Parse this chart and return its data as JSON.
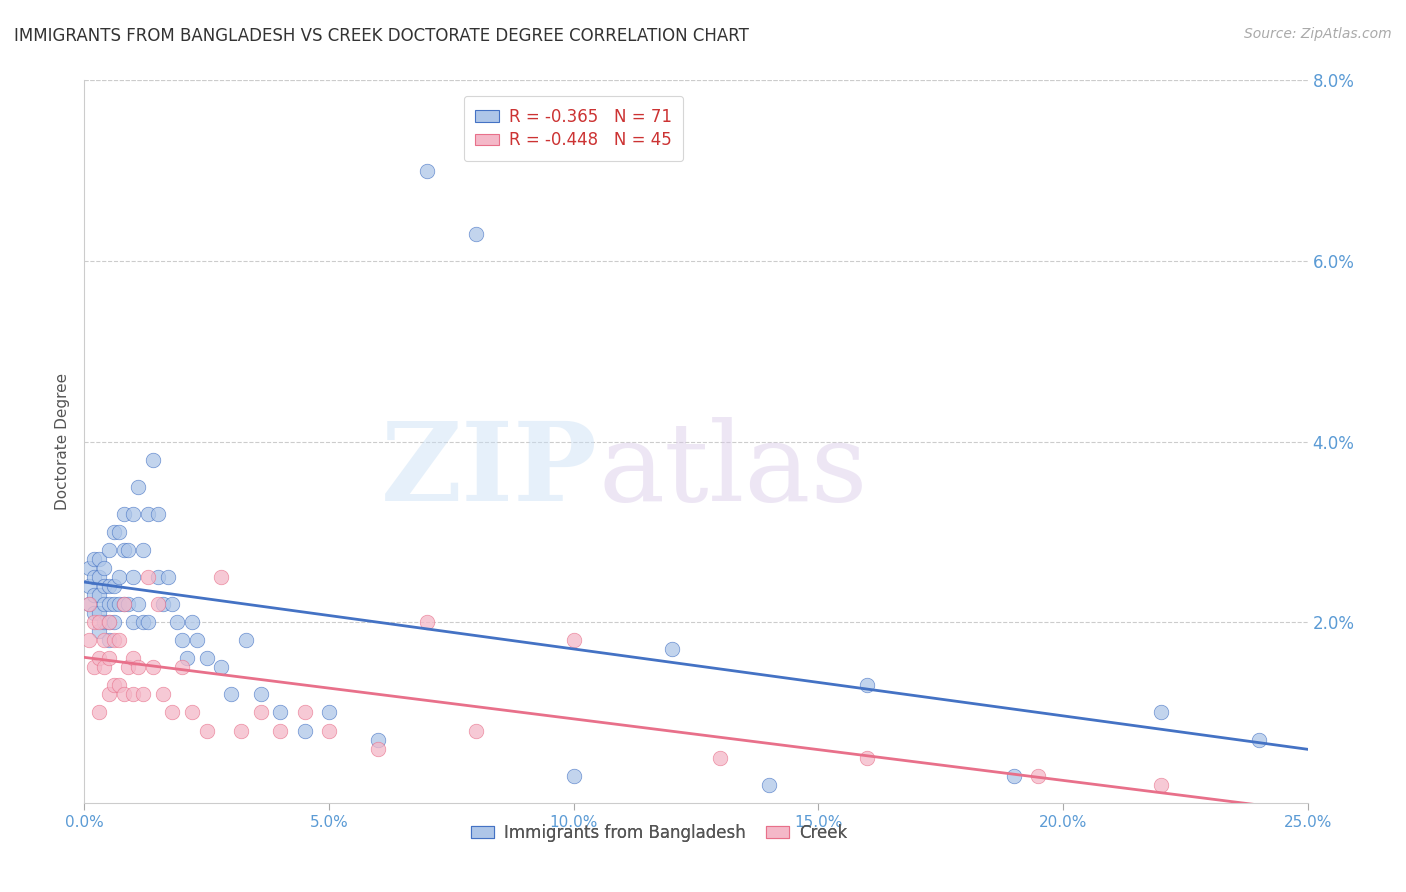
{
  "title": "IMMIGRANTS FROM BANGLADESH VS CREEK DOCTORATE DEGREE CORRELATION CHART",
  "source_text": "Source: ZipAtlas.com",
  "ylabel": "Doctorate Degree",
  "xlim": [
    0.0,
    0.25
  ],
  "ylim": [
    0.0,
    0.08
  ],
  "xticks": [
    0.0,
    0.05,
    0.1,
    0.15,
    0.2,
    0.25
  ],
  "xticklabels": [
    "0.0%",
    "5.0%",
    "10.0%",
    "15.0%",
    "20.0%",
    "25.0%"
  ],
  "yticks_right": [
    0.0,
    0.02,
    0.04,
    0.06,
    0.08
  ],
  "yticklabels_right": [
    "",
    "2.0%",
    "4.0%",
    "6.0%",
    "8.0%"
  ],
  "blue_color": "#aec6e8",
  "pink_color": "#f4b8c8",
  "blue_line_color": "#4472c4",
  "pink_line_color": "#e8708a",
  "legend_blue_label": "R = -0.365   N = 71",
  "legend_pink_label": "R = -0.448   N = 45",
  "legend_blue_series": "Immigrants from Bangladesh",
  "legend_pink_series": "Creek",
  "watermark_zip": "ZIP",
  "watermark_atlas": "atlas",
  "title_color": "#333333",
  "axis_label_color": "#5b9bd5",
  "blue_scatter_x": [
    0.001,
    0.001,
    0.001,
    0.002,
    0.002,
    0.002,
    0.002,
    0.003,
    0.003,
    0.003,
    0.003,
    0.003,
    0.004,
    0.004,
    0.004,
    0.004,
    0.005,
    0.005,
    0.005,
    0.005,
    0.005,
    0.006,
    0.006,
    0.006,
    0.006,
    0.007,
    0.007,
    0.007,
    0.008,
    0.008,
    0.008,
    0.009,
    0.009,
    0.01,
    0.01,
    0.01,
    0.011,
    0.011,
    0.012,
    0.012,
    0.013,
    0.013,
    0.014,
    0.015,
    0.015,
    0.016,
    0.017,
    0.018,
    0.019,
    0.02,
    0.021,
    0.022,
    0.023,
    0.025,
    0.028,
    0.03,
    0.033,
    0.036,
    0.04,
    0.045,
    0.05,
    0.06,
    0.07,
    0.08,
    0.1,
    0.12,
    0.14,
    0.16,
    0.19,
    0.22,
    0.24
  ],
  "blue_scatter_y": [
    0.022,
    0.024,
    0.026,
    0.021,
    0.023,
    0.025,
    0.027,
    0.019,
    0.021,
    0.023,
    0.025,
    0.027,
    0.02,
    0.022,
    0.024,
    0.026,
    0.018,
    0.02,
    0.022,
    0.024,
    0.028,
    0.02,
    0.022,
    0.024,
    0.03,
    0.022,
    0.025,
    0.03,
    0.022,
    0.028,
    0.032,
    0.022,
    0.028,
    0.02,
    0.025,
    0.032,
    0.022,
    0.035,
    0.02,
    0.028,
    0.02,
    0.032,
    0.038,
    0.025,
    0.032,
    0.022,
    0.025,
    0.022,
    0.02,
    0.018,
    0.016,
    0.02,
    0.018,
    0.016,
    0.015,
    0.012,
    0.018,
    0.012,
    0.01,
    0.008,
    0.01,
    0.007,
    0.07,
    0.063,
    0.003,
    0.017,
    0.002,
    0.013,
    0.003,
    0.01,
    0.007
  ],
  "pink_scatter_x": [
    0.001,
    0.001,
    0.002,
    0.002,
    0.003,
    0.003,
    0.003,
    0.004,
    0.004,
    0.005,
    0.005,
    0.005,
    0.006,
    0.006,
    0.007,
    0.007,
    0.008,
    0.008,
    0.009,
    0.01,
    0.01,
    0.011,
    0.012,
    0.013,
    0.014,
    0.015,
    0.016,
    0.018,
    0.02,
    0.022,
    0.025,
    0.028,
    0.032,
    0.036,
    0.04,
    0.045,
    0.05,
    0.06,
    0.07,
    0.08,
    0.1,
    0.13,
    0.16,
    0.195,
    0.22
  ],
  "pink_scatter_y": [
    0.018,
    0.022,
    0.015,
    0.02,
    0.01,
    0.016,
    0.02,
    0.015,
    0.018,
    0.012,
    0.016,
    0.02,
    0.013,
    0.018,
    0.013,
    0.018,
    0.012,
    0.022,
    0.015,
    0.012,
    0.016,
    0.015,
    0.012,
    0.025,
    0.015,
    0.022,
    0.012,
    0.01,
    0.015,
    0.01,
    0.008,
    0.025,
    0.008,
    0.01,
    0.008,
    0.01,
    0.008,
    0.006,
    0.02,
    0.008,
    0.018,
    0.005,
    0.005,
    0.003,
    0.002
  ]
}
